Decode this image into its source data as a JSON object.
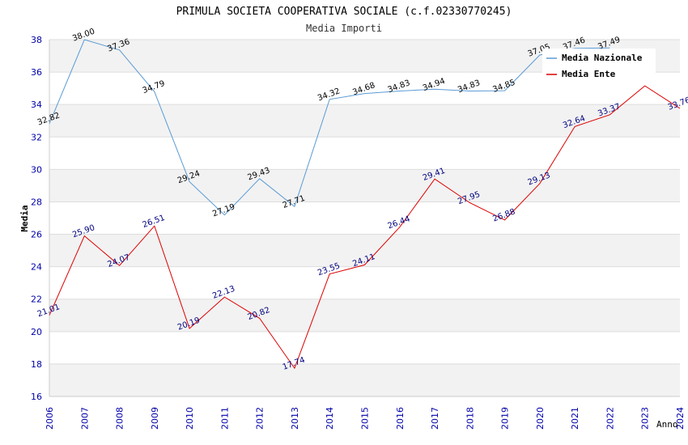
{
  "chart_data": {
    "type": "line",
    "title": "PRIMULA SOCIETA COOPERATIVA SOCIALE (c.f.02330770245)",
    "subtitle": "Media Importi",
    "xlabel": "Anno",
    "ylabel": "Media",
    "ylim": [
      16,
      38
    ],
    "yticks": [
      "16",
      "18",
      "20",
      "22",
      "24",
      "26",
      "28",
      "30",
      "32",
      "34",
      "36",
      "38"
    ],
    "categories": [
      "2006",
      "2007",
      "2008",
      "2009",
      "2010",
      "2011",
      "2012",
      "2013",
      "2014",
      "2015",
      "2016",
      "2017",
      "2018",
      "2019",
      "2020",
      "2021",
      "2022",
      "2023",
      "2024"
    ],
    "series": [
      {
        "name": "Media Nazionale",
        "color": "#5b9bd5",
        "values": [
          32.82,
          38.0,
          37.36,
          34.79,
          29.24,
          27.19,
          29.43,
          27.71,
          34.32,
          34.68,
          34.83,
          34.94,
          34.83,
          34.85,
          37.05,
          37.46,
          37.49,
          null,
          null
        ],
        "labels": [
          "32.82",
          "38.00",
          "37.36",
          "34.79",
          "29.24",
          "27.19",
          "29.43",
          "27.71",
          "34.32",
          "34.68",
          "34.83",
          "34.94",
          "34.83",
          "34.85",
          "37.05",
          "37.46",
          "37.49",
          "",
          ""
        ]
      },
      {
        "name": "Media Ente",
        "color": "#dd0000",
        "values": [
          21.01,
          25.9,
          24.07,
          26.51,
          20.19,
          22.13,
          20.82,
          17.74,
          23.55,
          24.11,
          26.44,
          29.41,
          27.95,
          26.88,
          29.13,
          32.64,
          33.37,
          35.15,
          33.76
        ],
        "labels": [
          "21.01",
          "25.90",
          "24.07",
          "26.51",
          "20.19",
          "22.13",
          "20.82",
          "17.74",
          "23.55",
          "24.11",
          "26.44",
          "29.41",
          "27.95",
          "26.88",
          "29.13",
          "32.64",
          "33.37",
          "",
          "33.76"
        ]
      }
    ],
    "legend": "top-right",
    "grid": true,
    "band_color": "#f2f2f2",
    "grid_color": "#dddddd",
    "axis_color": "#cccccc"
  }
}
